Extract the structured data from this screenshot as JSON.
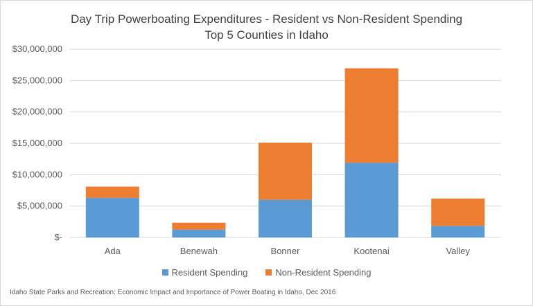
{
  "chart_data": {
    "type": "bar",
    "stacked": true,
    "title": "Day Trip Powerboating Expenditures - Resident vs Non-Resident Spending",
    "subtitle": "Top 5 Counties in Idaho",
    "categories": [
      "Ada",
      "Benewah",
      "Bonner",
      "Kootenai",
      "Valley"
    ],
    "series": [
      {
        "name": "Resident Spending",
        "color": "#5b9bd5",
        "values": [
          6300000,
          1250000,
          6000000,
          11900000,
          1850000
        ]
      },
      {
        "name": "Non-Resident Spending",
        "color": "#ed7d31",
        "values": [
          1800000,
          1100000,
          9100000,
          15050000,
          4350000
        ]
      }
    ],
    "ylim": [
      0,
      30000000
    ],
    "yticks": [
      0,
      5000000,
      10000000,
      15000000,
      20000000,
      25000000,
      30000000
    ],
    "ytick_labels": [
      "$-",
      "$5,000,000",
      "$10,000,000",
      "$15,000,000",
      "$20,000,000",
      "$25,000,000",
      "$30,000,000"
    ],
    "grid": true,
    "legend": "bottom",
    "source": "Idaho State Parks and Recreation: Economic Impact and Importance of Power Boating in Idaho, Dec 2016"
  }
}
